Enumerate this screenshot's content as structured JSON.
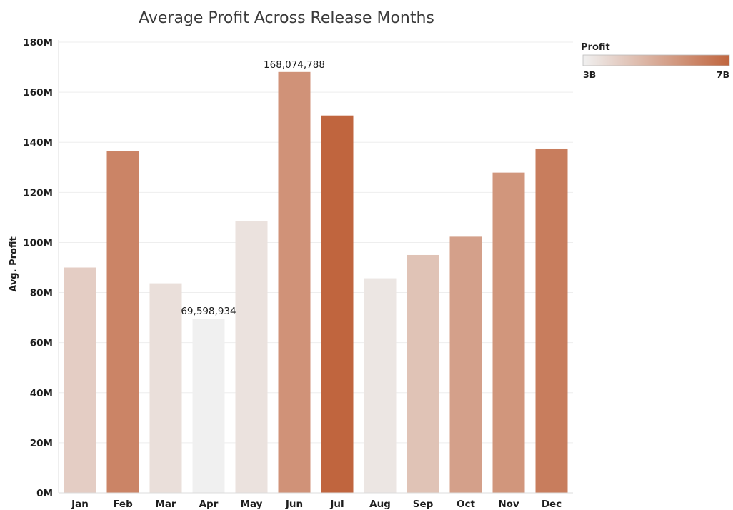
{
  "chart_data": {
    "type": "bar",
    "title": "Average Profit Across Release Months",
    "xlabel": "",
    "ylabel": "Avg. Profit",
    "ylim": [
      0,
      180000000
    ],
    "y_ticks": [
      {
        "value": 0,
        "label": "0M"
      },
      {
        "value": 20000000,
        "label": "20M"
      },
      {
        "value": 40000000,
        "label": "40M"
      },
      {
        "value": 60000000,
        "label": "60M"
      },
      {
        "value": 80000000,
        "label": "80M"
      },
      {
        "value": 100000000,
        "label": "100M"
      },
      {
        "value": 120000000,
        "label": "120M"
      },
      {
        "value": 140000000,
        "label": "140M"
      },
      {
        "value": 160000000,
        "label": "160M"
      },
      {
        "value": 180000000,
        "label": "180M"
      }
    ],
    "categories": [
      "Jan",
      "Feb",
      "Mar",
      "Apr",
      "May",
      "Jun",
      "Jul",
      "Aug",
      "Sep",
      "Oct",
      "Nov",
      "Dec"
    ],
    "values": [
      90000000,
      136500000,
      83700000,
      69598934,
      108500000,
      168074788,
      150700000,
      85700000,
      95000000,
      102300000,
      127900000,
      137500000
    ],
    "color_values": [
      4.0,
      6.1,
      3.5,
      3.0,
      3.4,
      5.7,
      7.0,
      3.3,
      4.3,
      5.3,
      5.6,
      6.3
    ],
    "data_labels": [
      {
        "index": 3,
        "text": "69,598,934"
      },
      {
        "index": 5,
        "text": "168,074,788"
      }
    ],
    "grid": true,
    "legend": {
      "title": "Profit",
      "position": "top-right",
      "min_label": "3B",
      "max_label": "7B",
      "min": 3,
      "max": 7,
      "color_low": "#f0f0f0",
      "color_high": "#c0653e"
    }
  }
}
